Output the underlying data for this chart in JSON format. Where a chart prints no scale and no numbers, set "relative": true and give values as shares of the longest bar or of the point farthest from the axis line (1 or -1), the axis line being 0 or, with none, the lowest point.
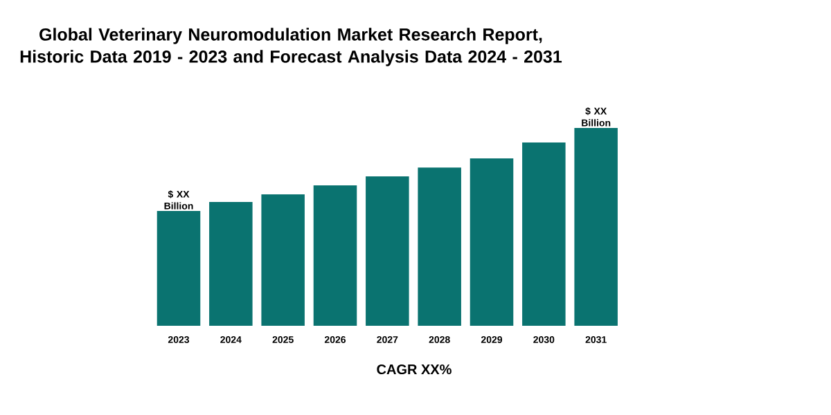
{
  "chart_data": {
    "type": "bar",
    "title": "Global Veterinary Neuromodulation Market Research Report, Historic Data 2019 - 2023 and Forecast Analysis Data 2024 - 2031",
    "categories": [
      "2023",
      "2024",
      "2025",
      "2026",
      "2027",
      "2028",
      "2029",
      "2030",
      "2031"
    ],
    "values": [
      0.58,
      0.626,
      0.664,
      0.71,
      0.755,
      0.8,
      0.846,
      0.927,
      1
    ],
    "color": "#0a7370",
    "relative": true,
    "annotations": [
      {
        "text": "$ XX Billion",
        "x": "2023",
        "y": 0.58
      },
      {
        "text": "$ XX Billion",
        "x": "2031",
        "y": 1
      },
      "CAGR XX%"
    ]
  }
}
